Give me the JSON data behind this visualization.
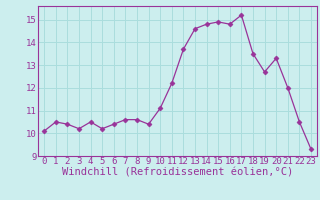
{
  "x": [
    0,
    1,
    2,
    3,
    4,
    5,
    6,
    7,
    8,
    9,
    10,
    11,
    12,
    13,
    14,
    15,
    16,
    17,
    18,
    19,
    20,
    21,
    22,
    23
  ],
  "y": [
    10.1,
    10.5,
    10.4,
    10.2,
    10.5,
    10.2,
    10.4,
    10.6,
    10.6,
    10.4,
    11.1,
    12.2,
    13.7,
    14.6,
    14.8,
    14.9,
    14.8,
    15.2,
    13.5,
    12.7,
    13.3,
    12.0,
    10.5,
    9.3
  ],
  "line_color": "#993399",
  "marker": "D",
  "marker_size": 2.5,
  "bg_color": "#cceeee",
  "grid_color": "#aadddd",
  "xlabel": "Windchill (Refroidissement éolien,°C)",
  "xlim": [
    -0.5,
    23.5
  ],
  "ylim": [
    9,
    15.6
  ],
  "yticks": [
    9,
    10,
    11,
    12,
    13,
    14,
    15
  ],
  "xticks": [
    0,
    1,
    2,
    3,
    4,
    5,
    6,
    7,
    8,
    9,
    10,
    11,
    12,
    13,
    14,
    15,
    16,
    17,
    18,
    19,
    20,
    21,
    22,
    23
  ],
  "tick_label_fontsize": 6.5,
  "xlabel_fontsize": 7.5
}
